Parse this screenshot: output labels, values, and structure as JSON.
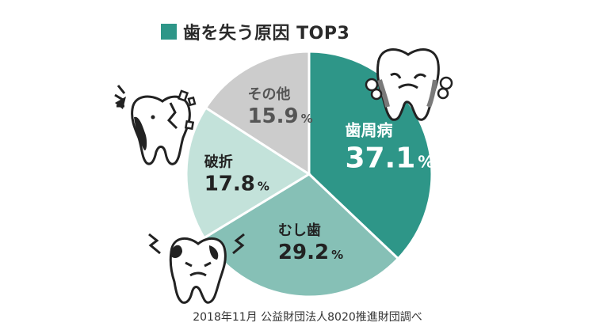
{
  "legend": {
    "label": "歯を失う原因 TOP3",
    "color": "#2e9688"
  },
  "source": "2018年11月 公益財団法人8020推進財団調べ",
  "chart_data": {
    "type": "pie",
    "title": "歯を失う原因 TOP3",
    "slices": [
      {
        "label": "歯周病",
        "value": 37.1,
        "unit": "%",
        "color": "#2e9688",
        "text_color": "#ffffff"
      },
      {
        "label": "むし歯",
        "value": 29.2,
        "unit": "%",
        "color": "#86c0b6",
        "text_color": "#222222"
      },
      {
        "label": "破折",
        "value": 17.8,
        "unit": "%",
        "color": "#c3e2da",
        "text_color": "#222222"
      },
      {
        "label": "その他",
        "value": 15.9,
        "unit": "%",
        "color": "#cccccc",
        "text_color": "#555555"
      }
    ],
    "start_angle": "12 o'clock",
    "direction": "clockwise"
  },
  "icons": [
    "tooth-gum-disease-icon",
    "tooth-cavity-icon",
    "broken-tooth-icon"
  ]
}
